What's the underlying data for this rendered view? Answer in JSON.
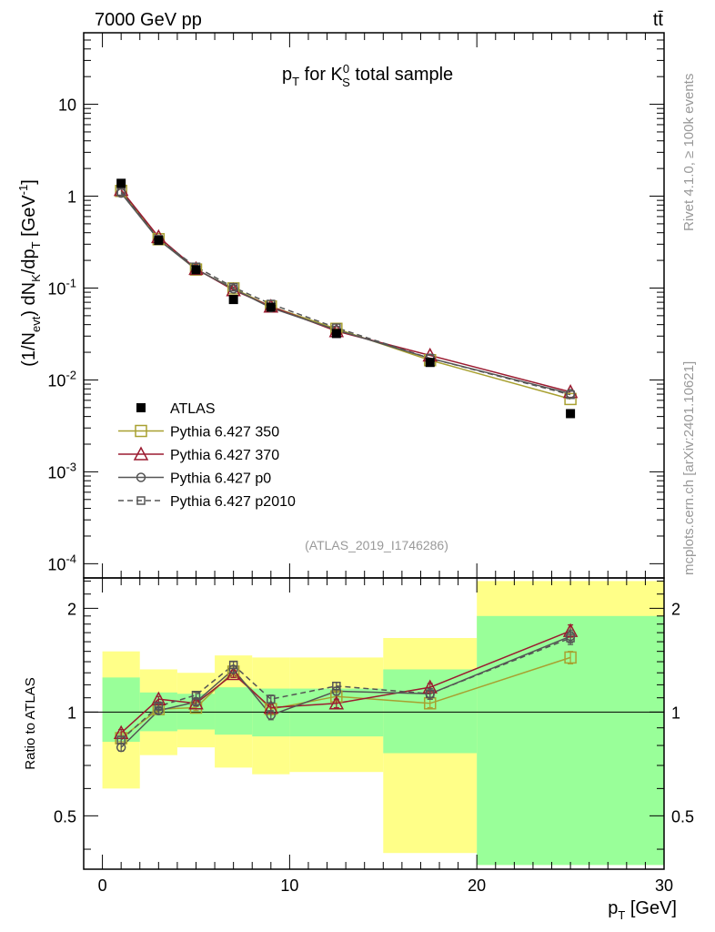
{
  "header": {
    "left": "7000 GeV pp",
    "right": "tt̄"
  },
  "side_labels": {
    "rivet": "Rivet 4.1.0, ≥ 100k events",
    "mcplots": "mcplots.cern.ch [arXiv:2401.10621]"
  },
  "analysis_id": "(ATLAS_2019_I1746286)",
  "colors": {
    "data": "#000000",
    "p350": "#a8a030",
    "p370": "#9b1b30",
    "p0": "#555555",
    "p2010": "#555555",
    "band_inner": "#99ff99",
    "band_outer": "#ffff88"
  },
  "chart_data": [
    {
      "type": "line",
      "title": "p_T for K_S^0 total sample",
      "xlabel": "",
      "ylabel": "(1/N_evt) dN_K/dp_T [GeV^-1]",
      "yscale": "log",
      "xlim": [
        -1,
        30
      ],
      "ylim": [
        7e-05,
        60
      ],
      "y_ticks": [
        "10^-4",
        "10^-3",
        "10^-2",
        "10^-1",
        "1",
        "10"
      ],
      "x": [
        1,
        3,
        5,
        7,
        9,
        12.5,
        17.5,
        25
      ],
      "bin_edges": [
        0,
        2,
        4,
        6,
        8,
        10,
        15,
        20,
        30
      ],
      "legend": [
        "ATLAS",
        "Pythia 6.427 350",
        "Pythia 6.427 370",
        "Pythia 6.427 p0",
        "Pythia 6.427 p2010"
      ],
      "series": [
        {
          "name": "ATLAS",
          "values": [
            1.38,
            0.33,
            0.158,
            0.075,
            0.062,
            0.032,
            0.0155,
            0.0043
          ]
        },
        {
          "name": "Pythia 6.427 350",
          "values": [
            1.14,
            0.34,
            0.159,
            0.099,
            0.063,
            0.036,
            0.0164,
            0.0062
          ]
        },
        {
          "name": "Pythia 6.427 370",
          "values": [
            1.17,
            0.36,
            0.162,
            0.095,
            0.063,
            0.034,
            0.0185,
            0.0074
          ]
        },
        {
          "name": "Pythia 6.427 p0",
          "values": [
            1.08,
            0.335,
            0.16,
            0.098,
            0.061,
            0.035,
            0.0172,
            0.0071
          ]
        },
        {
          "name": "Pythia 6.427 p2010",
          "values": [
            1.12,
            0.34,
            0.17,
            0.102,
            0.067,
            0.037,
            0.0172,
            0.0069
          ]
        }
      ]
    },
    {
      "type": "line",
      "title": "",
      "xlabel": "p_T [GeV]",
      "ylabel": "Ratio to ATLAS",
      "yscale": "log",
      "xlim": [
        -1,
        30
      ],
      "ylim": [
        0.35,
        2.45
      ],
      "x_ticks": [
        "0",
        "10",
        "20",
        "30"
      ],
      "y_ticks": [
        "0.5",
        "1",
        "2"
      ],
      "x": [
        1,
        3,
        5,
        7,
        9,
        12.5,
        17.5,
        25
      ],
      "bin_edges": [
        0,
        2,
        4,
        6,
        8,
        10,
        15,
        20,
        30
      ],
      "band_inner": [
        {
          "lo": 0.82,
          "hi": 1.26
        },
        {
          "lo": 0.88,
          "hi": 1.14
        },
        {
          "lo": 0.89,
          "hi": 1.13
        },
        {
          "lo": 0.86,
          "hi": 1.18
        },
        {
          "lo": 0.85,
          "hi": 1.17
        },
        {
          "lo": 0.85,
          "hi": 1.17
        },
        {
          "lo": 0.76,
          "hi": 1.33
        },
        {
          "lo": 0.36,
          "hi": 1.9
        }
      ],
      "band_outer": [
        {
          "lo": 0.6,
          "hi": 1.5
        },
        {
          "lo": 0.75,
          "hi": 1.33
        },
        {
          "lo": 0.79,
          "hi": 1.3
        },
        {
          "lo": 0.69,
          "hi": 1.46
        },
        {
          "lo": 0.66,
          "hi": 1.44
        },
        {
          "lo": 0.67,
          "hi": 1.44
        },
        {
          "lo": 0.39,
          "hi": 1.64
        },
        {
          "lo": 0.36,
          "hi": 2.4
        }
      ],
      "series": [
        {
          "name": "Pythia 6.427 350",
          "values": [
            0.84,
            1.02,
            1.03,
            1.31,
            1.02,
            1.11,
            1.06,
            1.44
          ],
          "err": [
            0.02,
            0.02,
            0.02,
            0.03,
            0.03,
            0.03,
            0.03,
            0.06
          ]
        },
        {
          "name": "Pythia 6.427 370",
          "values": [
            0.87,
            1.09,
            1.06,
            1.29,
            1.03,
            1.06,
            1.18,
            1.72
          ],
          "err": [
            0.02,
            0.02,
            0.02,
            0.03,
            0.03,
            0.03,
            0.03,
            0.07
          ]
        },
        {
          "name": "Pythia 6.427 p0",
          "values": [
            0.79,
            1.01,
            1.07,
            1.33,
            0.98,
            1.15,
            1.13,
            1.66
          ],
          "err": [
            0.02,
            0.02,
            0.02,
            0.03,
            0.03,
            0.03,
            0.04,
            0.07
          ]
        },
        {
          "name": "Pythia 6.427 p2010",
          "values": [
            0.83,
            1.04,
            1.12,
            1.37,
            1.09,
            1.19,
            1.13,
            1.64
          ],
          "err": [
            0.02,
            0.02,
            0.02,
            0.03,
            0.03,
            0.03,
            0.04,
            0.07
          ]
        }
      ]
    }
  ]
}
